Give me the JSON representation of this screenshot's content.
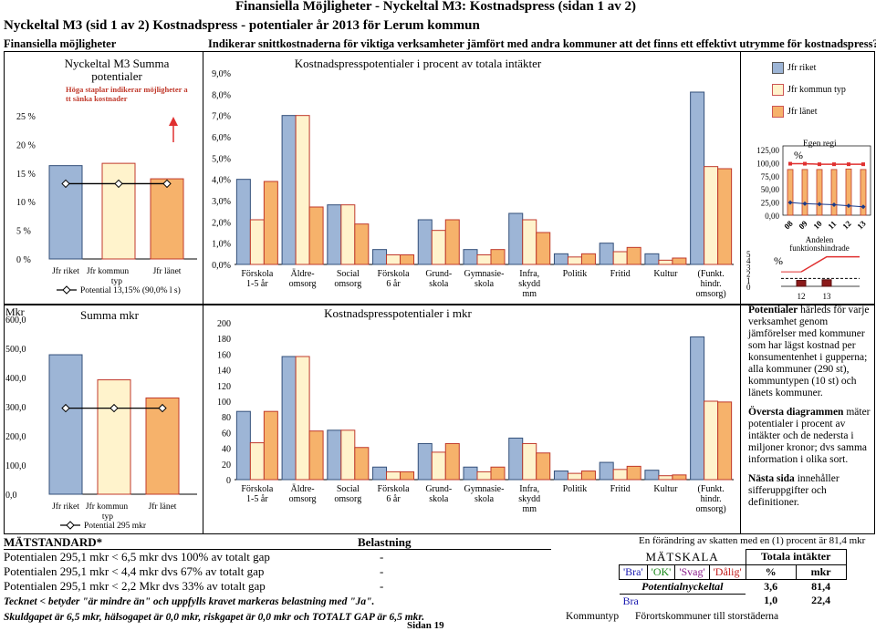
{
  "header": {
    "top_title": "Finansiella Möjligheter - Nyckeltal M3: Kostnadspress (sidan 1 av 2)",
    "main_title": "Nyckeltal M3 (sid 1 av 2) Kostnadspress - potentialer år 2013 för Lerum kommun",
    "section_label": "Finansiella möjligheter",
    "subtitle": "Indikerar snittkostnaderna för viktiga verksamheter jämfört med andra kommuner att det finns ett effektivt utrymme för kostnadspress?"
  },
  "colors": {
    "blue": "#9db5d6",
    "yellow": "#fff3cc",
    "orange": "#f6b26b",
    "red": "#e05050",
    "darkred": "#8b1a1a"
  },
  "chart_data": [
    {
      "id": "summa-potentialer-pct",
      "type": "bar",
      "title": "Nyckeltal M3 Summa potentialer",
      "note": "Höga staplar indikerar möjligheter att sänka kostnader",
      "categories": [
        "Jfr riket",
        "Jfr kommun typ",
        "Jfr länet"
      ],
      "values": [
        16.3,
        16.7,
        14.0
      ],
      "line_value": 13.15,
      "line_label": "Potential 13,15% (90,0% l s)",
      "yticks": [
        "0 %",
        "5 %",
        "10 %",
        "15 %",
        "20 %",
        "25 %"
      ],
      "ylim": [
        0,
        25
      ]
    },
    {
      "id": "kostnadspresspotentialer-pct",
      "type": "bar",
      "title": "Kostnadspresspotentialer i procent av totala intäkter",
      "categories": [
        "Förskola 1-5 år",
        "Äldre-omsorg",
        "Social omsorg",
        "Förskola 6 år",
        "Grund-skola",
        "Gymnasie-skola",
        "Infra, skydd mm",
        "Politik",
        "Fritid",
        "Kultur",
        "(Funkt. hindr. omsorg)"
      ],
      "series": [
        {
          "name": "Jfr riket",
          "values": [
            4.0,
            7.0,
            2.8,
            0.7,
            2.1,
            0.7,
            2.4,
            0.5,
            1.0,
            0.5,
            8.1
          ]
        },
        {
          "name": "Jfr kommun typ",
          "values": [
            2.1,
            7.0,
            2.8,
            0.45,
            1.6,
            0.45,
            2.1,
            0.35,
            0.6,
            0.2,
            4.6
          ]
        },
        {
          "name": "Jfr länet",
          "values": [
            3.9,
            2.7,
            1.9,
            0.45,
            2.1,
            0.7,
            1.5,
            0.5,
            0.8,
            0.3,
            4.5
          ]
        }
      ],
      "yticks": [
        "0,0%",
        "1,0%",
        "2,0%",
        "3,0%",
        "4,0%",
        "5,0%",
        "6,0%",
        "7,0%",
        "8,0%",
        "9,0%"
      ],
      "ylim": [
        0,
        9
      ]
    },
    {
      "id": "egen-regi",
      "type": "bar",
      "title": "Egen regi",
      "unit": "%",
      "categories": [
        "08",
        "09",
        "10",
        "11",
        "12",
        "13"
      ],
      "values": [
        87,
        87,
        87,
        87,
        88,
        87
      ],
      "line_values": [
        98,
        98,
        97,
        97,
        97,
        97
      ],
      "line2_values": [
        24,
        22,
        21,
        20,
        18,
        16
      ],
      "yticks": [
        "0,00",
        "25,00",
        "50,00",
        "75,00",
        "100,00",
        "125,00"
      ],
      "ylim": [
        0,
        125
      ]
    },
    {
      "id": "funktionshindrade",
      "type": "bar",
      "title": "Andelen funktionshindrade",
      "unit": "%",
      "categories": [
        "12",
        "13"
      ],
      "values": [
        0.9,
        1.0
      ],
      "line_values": [
        2.2,
        4.5
      ],
      "dashed_value": 1.2,
      "yticks": [
        "0",
        "1",
        "2",
        "3",
        "4",
        "5"
      ],
      "ylim": [
        0,
        5
      ]
    },
    {
      "id": "summa-mkr",
      "type": "bar",
      "title": "Summa mkr",
      "unit_label": "Mkr",
      "categories": [
        "Jfr riket",
        "Jfr kommun typ",
        "Jfr länet"
      ],
      "values": [
        478,
        392,
        330
      ],
      "line_value": 295,
      "line_label": "Potential 295 mkr",
      "yticks": [
        "0,0",
        "100,0",
        "200,0",
        "300,0",
        "400,0",
        "500,0",
        "600,0"
      ],
      "ylim": [
        0,
        600
      ]
    },
    {
      "id": "kostnadspresspotentialer-mkr",
      "type": "bar",
      "title": "Kostnadspresspotentialer i mkr",
      "unit_label": "Mkr",
      "categories": [
        "Förskola 1-5 år",
        "Äldre-omsorg",
        "Social omsorg",
        "Förskola 6 år",
        "Grund-skola",
        "Gymnasie-skola",
        "Infra, skydd mm",
        "Politik",
        "Fritid",
        "Kultur",
        "(Funkt. hindr. omsorg)"
      ],
      "series": [
        {
          "name": "Jfr riket",
          "values": [
            87,
            157,
            63,
            16,
            46,
            16,
            53,
            11,
            22,
            12,
            182
          ]
        },
        {
          "name": "Jfr kommun typ",
          "values": [
            47,
            157,
            63,
            10,
            35,
            10,
            46,
            8,
            13,
            5,
            100
          ]
        },
        {
          "name": "Jfr länet",
          "values": [
            87,
            62,
            41,
            10,
            46,
            16,
            34,
            11,
            17,
            6,
            99
          ]
        }
      ],
      "yticks": [
        "0",
        "20",
        "40",
        "60",
        "80",
        "100",
        "120",
        "140",
        "160",
        "180",
        "200"
      ],
      "ylim": [
        0,
        200
      ]
    }
  ],
  "legend": {
    "items": [
      "Jfr riket",
      "Jfr kommun typ",
      "Jfr länet"
    ]
  },
  "info": {
    "p1_bold": "Potentialer",
    "p1_rest": " härleds för varje verksamhet genom jämförelser med kommuner som har lägst kostnad per konsumentenhet i gupperna; alla kommuner (290 st), kommuntypen (10 st) och länets kommuner.",
    "p2_bold": "Översta diagrammen",
    "p2_rest": " mäter potentialer i procent av intäkter och de nedersta i miljoner kronor; dvs samma information i olika sort.",
    "p3_bold": "Nästa sida",
    "p3_rest": " innehåller sifferuppgifter och definitioner."
  },
  "matstandard": {
    "title": "MÄTSTANDARD*",
    "belastning": "Belastning",
    "rows": [
      {
        "text": "Potentialen 295,1 mkr < 6,5 mkr dvs 100% av totalt gap",
        "val": "-"
      },
      {
        "text": "Potentialen 295,1 mkr < 4,4 mkr dvs 67% av totalt gap",
        "val": "-"
      },
      {
        "text": "Potentialen 295,1 mkr < 2,2 Mkr dvs 33% av totalt gap",
        "val": "-"
      }
    ],
    "note1": "Tecknet < betyder \"är mindre än\" och uppfylls kravet markeras belastning med \"Ja\".",
    "note2": "Skuldgapet är 6,5 mkr, hälsogapet är 0,0 mkr, riskgapet är 0,0 mkr och TOTALT GAP är 6,5 mkr."
  },
  "matskala": {
    "change_note": "En förändring av skatten med en (1) procent är  81,4 mkr",
    "title": "MÄTSKALA",
    "total_title": "Totala intäkter",
    "bra": "'Bra'",
    "ok": "'OK'",
    "svag": "'Svag'",
    "dalig": "'Dålig'",
    "col_pct": "%",
    "col_mkr": "mkr",
    "potential_label": "Potentialnyckeltal",
    "row1_pct": "3,6",
    "row1_mkr": "81,4",
    "bra_text": "Bra",
    "row2_pct": "1,0",
    "row2_mkr": "22,4",
    "kommuntyp_label": "Kommuntyp",
    "kommuntyp_value": "Förortskommuner till storstäderna"
  },
  "footer": {
    "page": "Sidan 19"
  }
}
